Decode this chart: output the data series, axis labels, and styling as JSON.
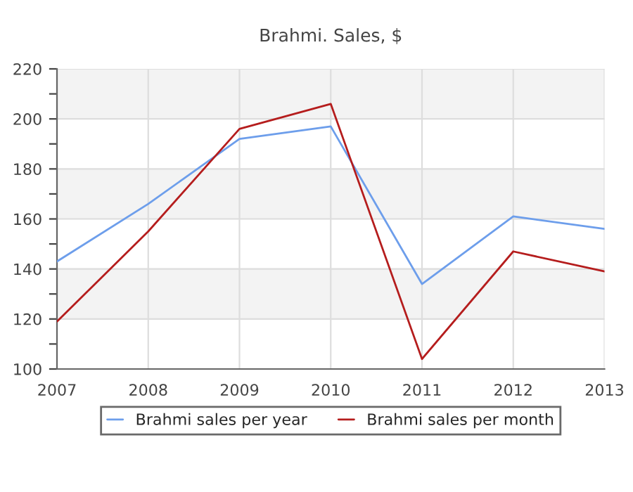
{
  "chart_data": {
    "type": "line",
    "title": "Brahmi. Sales, $",
    "x": [
      2007,
      2008,
      2009,
      2010,
      2011,
      2012,
      2013
    ],
    "series": [
      {
        "name": "Brahmi sales per year",
        "color": "#6d9eeb",
        "values": [
          143,
          166,
          192,
          197,
          134,
          161,
          156
        ]
      },
      {
        "name": "Brahmi sales per month",
        "color": "#b51d1d",
        "values": [
          119,
          155,
          196,
          206,
          104,
          147,
          139
        ]
      }
    ],
    "xlim": [
      2007,
      2013
    ],
    "xticks": [
      2007,
      2008,
      2009,
      2010,
      2011,
      2012,
      2013
    ],
    "ylim": [
      100,
      220
    ],
    "yticks": [
      100,
      {
        "value": 110,
        "label": null
      },
      120,
      {
        "value": 130,
        "label": null
      },
      140,
      {
        "value": 150,
        "label": null
      },
      160,
      {
        "value": 170,
        "label": null
      },
      180,
      {
        "value": 190,
        "label": null
      },
      200,
      {
        "value": 210,
        "label": null
      },
      220
    ],
    "bands": [
      {
        "axis": "y",
        "from": 120,
        "to": 140,
        "color": "#f3f3f3"
      },
      {
        "axis": "y",
        "from": 160,
        "to": 180,
        "color": "#f3f3f3"
      },
      {
        "axis": "y",
        "from": 200,
        "to": 220,
        "color": "#f3f3f3"
      }
    ],
    "grid": true,
    "legend": "bottom",
    "marker": "none",
    "line_style": "solid"
  }
}
